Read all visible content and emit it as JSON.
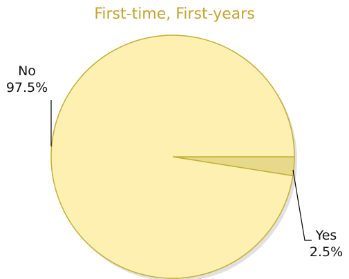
{
  "chart_data": {
    "type": "pie",
    "title": "First-time, First-years",
    "slices": [
      {
        "label": "No",
        "value": 97.5,
        "display": "97.5%",
        "color": "#fdf0b1"
      },
      {
        "label": "Yes",
        "value": 2.5,
        "display": "2.5%",
        "color": "#e6d98c"
      }
    ],
    "edge_color": "#c7ad2f",
    "legend": "none"
  }
}
